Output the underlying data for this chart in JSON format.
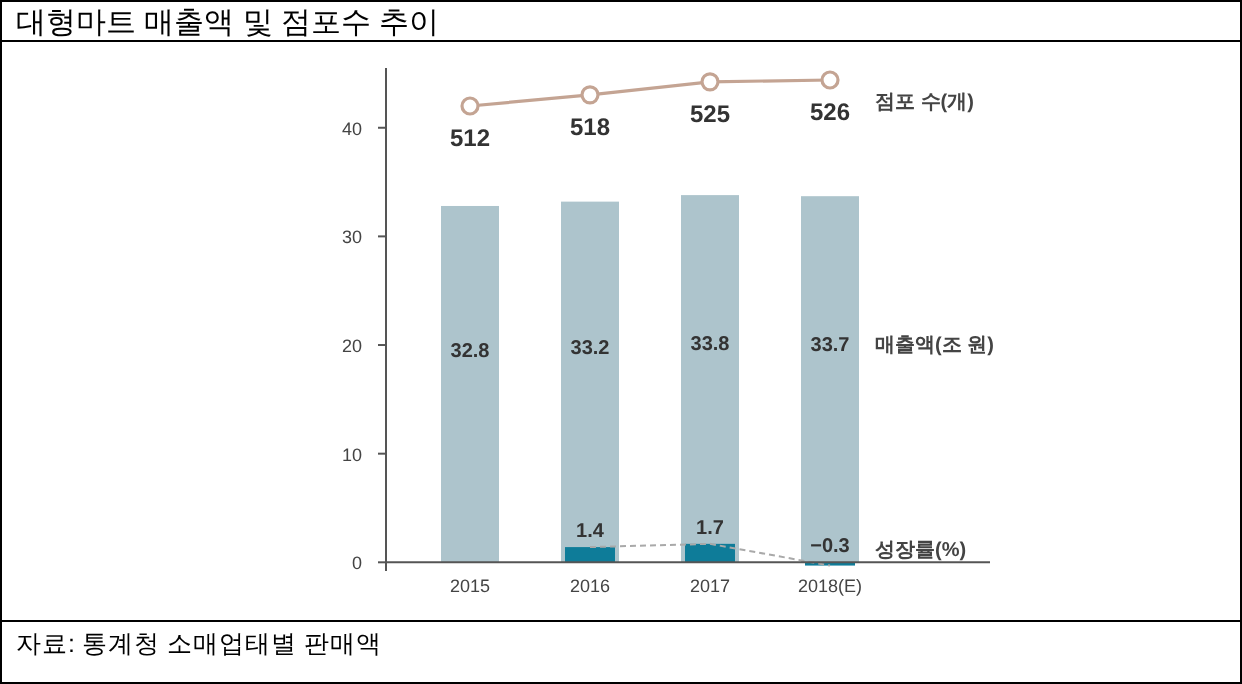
{
  "chart_data": {
    "type": "bar",
    "title": "대형마트 매출액 및 점포수 추이",
    "categories": [
      "2015",
      "2016",
      "2017",
      "2018(E)"
    ],
    "series": [
      {
        "name": "매출액(조 원)",
        "color": "#adc4cc",
        "values": [
          32.8,
          33.2,
          33.8,
          33.7
        ]
      },
      {
        "name": "성장률(%)",
        "color": "#0e7c99",
        "values": [
          null,
          1.4,
          1.7,
          -0.3
        ]
      },
      {
        "type": "line",
        "color": "#a9a9a9",
        "line_style": "dashed",
        "marker": "none",
        "values": [
          null,
          1.4,
          1.7,
          -0.3
        ],
        "value_labels": [
          null,
          null,
          null,
          null
        ]
      },
      {
        "name": "점포 수(개)",
        "type": "line",
        "axis": "y2",
        "color": "#c4a493",
        "marker": "circle",
        "values": [
          512,
          518,
          525,
          526
        ]
      }
    ],
    "data_labels": true,
    "ylim": [
      -0.8,
      45.5
    ],
    "yticks": [
      0,
      10,
      20,
      30,
      40
    ],
    "tick_labels": "xy",
    "grid": false,
    "annotations": [
      "자료: 통계청 소매업태별 판매액"
    ]
  }
}
